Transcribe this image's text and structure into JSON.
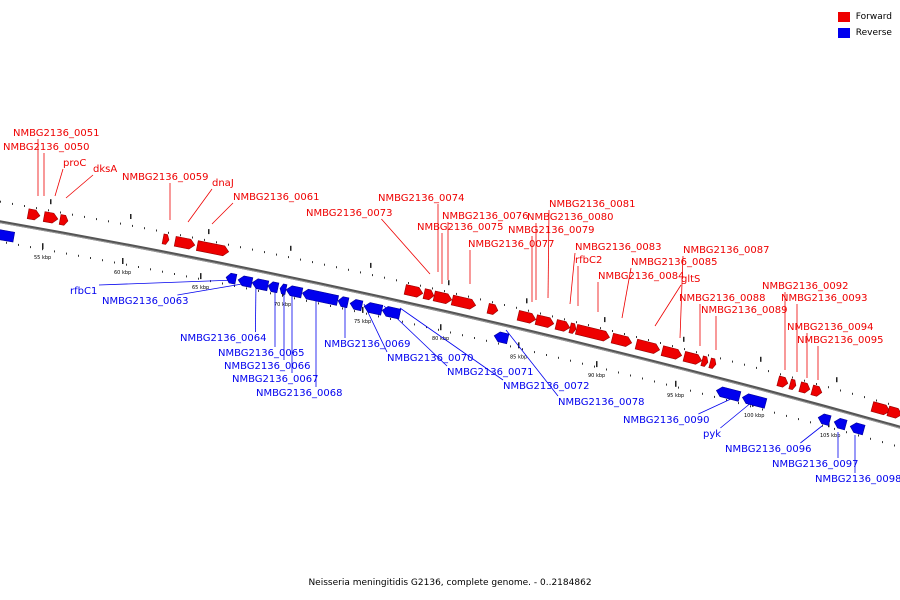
{
  "legend": [
    {
      "label": "Forward",
      "color": "#ee0000"
    },
    {
      "label": "Reverse",
      "color": "#0000ee"
    }
  ],
  "caption": "Neisseria meningitidis G2136, complete genome. - 0..2184862",
  "ticks": [
    "55 kbp",
    "60 kbp",
    "65 kbp",
    "70 kbp",
    "75 kbp",
    "80 kbp",
    "85 kbp",
    "90 kbp",
    "95 kbp",
    "100 kbp",
    "105 kbp"
  ],
  "forward_labels": [
    "NMBG2136_0051",
    "NMBG2136_0050",
    "proC",
    "dksA",
    "NMBG2136_0059",
    "dnaJ",
    "NMBG2136_0061",
    "NMBG2136_0073",
    "NMBG2136_0074",
    "NMBG2136_0076",
    "NMBG2136_0075",
    "NMBG2136_0077",
    "NMBG2136_0081",
    "NMBG2136_0080",
    "NMBG2136_0079",
    "NMBG2136_0083",
    "rfbC2",
    "NMBG2136_0084",
    "NMBG2136_0085",
    "gltS",
    "NMBG2136_0087",
    "NMBG2136_0088",
    "NMBG2136_0089",
    "NMBG2136_0092",
    "NMBG2136_0093",
    "NMBG2136_0094",
    "NMBG2136_0095"
  ],
  "reverse_labels": [
    "rfbC1",
    "NMBG2136_0063",
    "NMBG2136_0064",
    "NMBG2136_0065",
    "NMBG2136_0066",
    "NMBG2136_0067",
    "NMBG2136_0068",
    "NMBG2136_0069",
    "NMBG2136_0070",
    "NMBG2136_0071",
    "NMBG2136_0072",
    "NMBG2136_0078",
    "NMBG2136_0090",
    "pyk",
    "NMBG2136_0096",
    "NMBG2136_0097",
    "NMBG2136_0098"
  ]
}
